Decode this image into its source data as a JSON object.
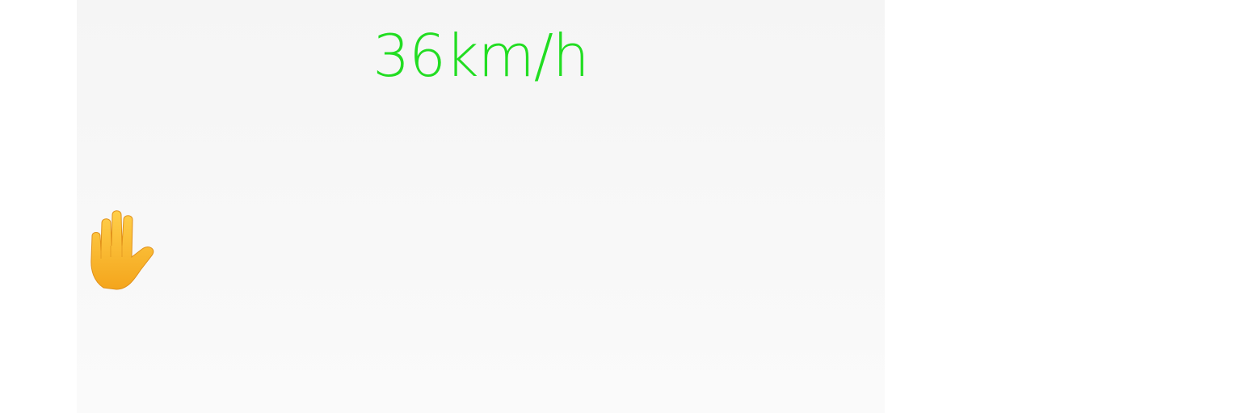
{
  "speed_display": {
    "text": "36km/h",
    "color": "#22dd22"
  },
  "stop_icon": {
    "name": "raised-hand-icon",
    "glyph": "✋"
  }
}
